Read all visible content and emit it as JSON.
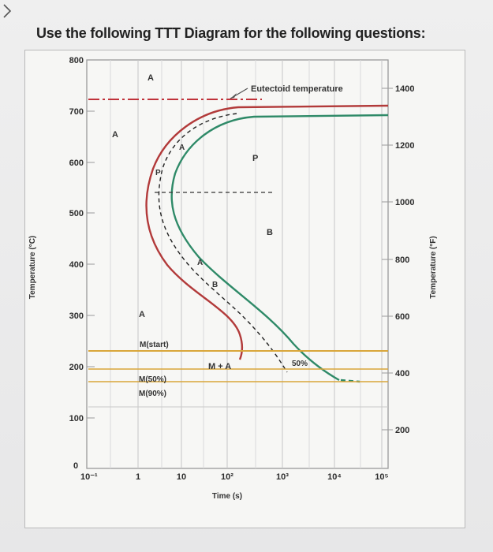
{
  "header": {
    "title": "Use the following TTT Diagram for the following questions:"
  },
  "diagram": {
    "y_axis_left_label": "Temperature (°C)",
    "y_axis_right_label": "Temperature (°F)",
    "x_axis_label": "Time (s)",
    "celsius_ticks": [
      "800",
      "700",
      "600",
      "500",
      "400",
      "300",
      "200",
      "100",
      "0"
    ],
    "fahrenheit_ticks": [
      "1400",
      "1200",
      "1000",
      "800",
      "600",
      "400",
      "200"
    ],
    "time_ticks": [
      "10⁻¹",
      "1",
      "10",
      "10²",
      "10³",
      "10⁴",
      "10⁵"
    ],
    "labels": {
      "austenite_top": "A",
      "austenite_left": "A",
      "austenite_low": "A",
      "eutectoid": "Eutectoid temperature",
      "pearlite": "P",
      "bainite": "B",
      "m_start": "M(start)",
      "m_50": "M(50%)",
      "m_90": "M(90%)",
      "m_plus_a": "M + A",
      "fifty_percent": "50%",
      "p_marker": "P",
      "a_marker_upper": "A",
      "a_marker_mid": "A",
      "b_marker": "B"
    },
    "colors": {
      "start_curve": "#b23a3a",
      "finish_curve": "#2f8a68",
      "eutectoid_line": "#c0323a",
      "martensite_lines": "#d9a63a",
      "grid": "#c8c8c8"
    }
  }
}
